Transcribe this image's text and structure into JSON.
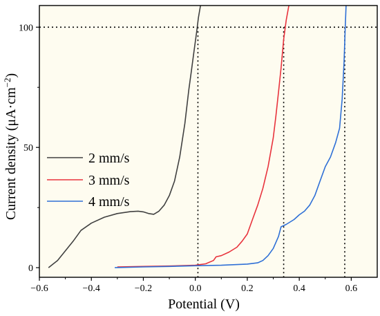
{
  "chart_data": {
    "type": "line",
    "title": "",
    "xlabel": "Potential (V)",
    "ylabel_main": "Current density (μA·cm",
    "ylabel_sup": "−2",
    "ylabel_close": ")",
    "xlim": [
      -0.6,
      0.7
    ],
    "ylim": [
      -4,
      109
    ],
    "x_ticks": [
      -0.6,
      -0.4,
      -0.2,
      0.0,
      0.2,
      0.4,
      0.6
    ],
    "x_tick_labels": [
      "−0.6",
      "−0.4",
      "−0.2",
      "0.0",
      "0.2",
      "0.4",
      "0.6"
    ],
    "y_ticks": [
      0,
      50,
      100
    ],
    "y_tick_labels": [
      "0",
      "50",
      "100"
    ],
    "plot_background": "#fefcf0",
    "legend_position": "middle-left",
    "reference_lines": {
      "horizontal_y": 100,
      "vertical_x": [
        0.01,
        0.34,
        0.575
      ],
      "style": "dotted",
      "color": "#000000"
    },
    "series": [
      {
        "name": "2 mm/s",
        "color": "#404040",
        "points": [
          [
            -0.565,
            0
          ],
          [
            -0.53,
            3
          ],
          [
            -0.5,
            7
          ],
          [
            -0.47,
            11
          ],
          [
            -0.44,
            15.5
          ],
          [
            -0.4,
            18.5
          ],
          [
            -0.35,
            21
          ],
          [
            -0.3,
            22.5
          ],
          [
            -0.25,
            23.3
          ],
          [
            -0.22,
            23.5
          ],
          [
            -0.2,
            23.2
          ],
          [
            -0.18,
            22.5
          ],
          [
            -0.16,
            22.2
          ],
          [
            -0.14,
            23.5
          ],
          [
            -0.12,
            26
          ],
          [
            -0.1,
            30
          ],
          [
            -0.08,
            36
          ],
          [
            -0.06,
            46
          ],
          [
            -0.04,
            60
          ],
          [
            -0.025,
            74
          ],
          [
            -0.015,
            82
          ],
          [
            -0.005,
            90
          ],
          [
            0.005,
            98
          ],
          [
            0.012,
            104
          ],
          [
            0.02,
            109
          ]
        ]
      },
      {
        "name": "3 mm/s",
        "color": "#e8323c",
        "points": [
          [
            -0.3,
            0.3
          ],
          [
            -0.2,
            0.5
          ],
          [
            -0.1,
            0.7
          ],
          [
            0.0,
            1.0
          ],
          [
            0.04,
            1.6
          ],
          [
            0.07,
            3
          ],
          [
            0.08,
            4.5
          ],
          [
            0.1,
            5
          ],
          [
            0.13,
            6.5
          ],
          [
            0.16,
            8.5
          ],
          [
            0.18,
            11
          ],
          [
            0.2,
            14
          ],
          [
            0.22,
            20
          ],
          [
            0.24,
            26
          ],
          [
            0.26,
            33
          ],
          [
            0.28,
            42
          ],
          [
            0.3,
            54
          ],
          [
            0.31,
            63
          ],
          [
            0.32,
            73
          ],
          [
            0.33,
            83
          ],
          [
            0.34,
            95
          ],
          [
            0.35,
            103
          ],
          [
            0.36,
            109
          ]
        ]
      },
      {
        "name": "4 mm/s",
        "color": "#2e6fd6",
        "points": [
          [
            -0.31,
            0
          ],
          [
            -0.2,
            0.3
          ],
          [
            -0.1,
            0.5
          ],
          [
            0.0,
            0.8
          ],
          [
            0.1,
            1.0
          ],
          [
            0.2,
            1.5
          ],
          [
            0.24,
            2
          ],
          [
            0.26,
            3
          ],
          [
            0.28,
            5
          ],
          [
            0.3,
            8
          ],
          [
            0.32,
            13
          ],
          [
            0.33,
            17
          ],
          [
            0.35,
            18
          ],
          [
            0.38,
            20
          ],
          [
            0.4,
            22
          ],
          [
            0.42,
            23.5
          ],
          [
            0.44,
            26
          ],
          [
            0.46,
            30
          ],
          [
            0.48,
            36
          ],
          [
            0.5,
            42
          ],
          [
            0.52,
            46
          ],
          [
            0.54,
            52
          ],
          [
            0.555,
            58
          ],
          [
            0.565,
            70
          ],
          [
            0.572,
            85
          ],
          [
            0.577,
            100
          ],
          [
            0.58,
            109
          ]
        ]
      }
    ]
  }
}
